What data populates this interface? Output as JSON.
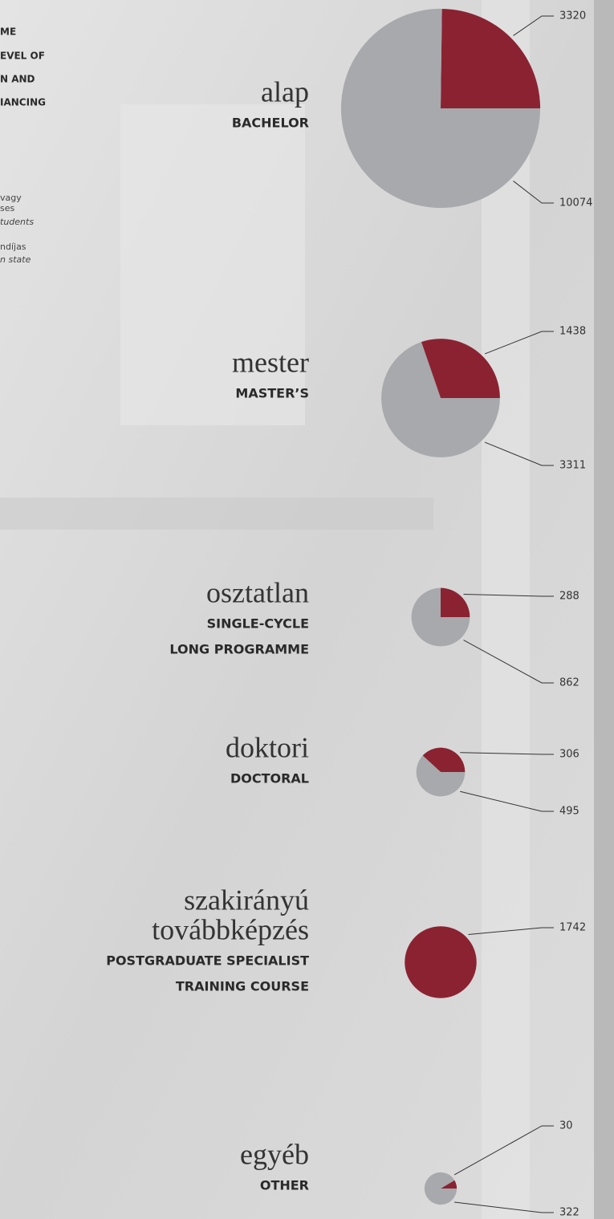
{
  "header_fragments": {
    "heading": [
      "ME",
      "EVEL OF",
      "N AND",
      "IANCING"
    ],
    "note": [
      "vagy",
      "ses",
      "tudents",
      "ndíjas",
      "n state"
    ]
  },
  "chart_data": [
    {
      "type": "pie",
      "title": [
        "alap"
      ],
      "subtitle": [
        "BACHELOR"
      ],
      "values": [
        3320,
        10074
      ],
      "colors": [
        "#8b2232",
        "#a7a9ac"
      ]
    },
    {
      "type": "pie",
      "title": [
        "mester"
      ],
      "subtitle": [
        "MASTER’S"
      ],
      "values": [
        1438,
        3311
      ],
      "colors": [
        "#8b2232",
        "#a7a9ac"
      ]
    },
    {
      "type": "pie",
      "title": [
        "osztatlan"
      ],
      "subtitle": [
        "SINGLE-CYCLE",
        "LONG PROGRAMME"
      ],
      "values": [
        288,
        862
      ],
      "colors": [
        "#8b2232",
        "#a7a9ac"
      ]
    },
    {
      "type": "pie",
      "title": [
        "doktori"
      ],
      "subtitle": [
        "DOCTORAL"
      ],
      "values": [
        306,
        495
      ],
      "colors": [
        "#8b2232",
        "#a7a9ac"
      ]
    },
    {
      "type": "pie",
      "title": [
        "szakirányú",
        "továbbképzés"
      ],
      "subtitle": [
        "POSTGRADUATE SPECIALIST",
        "TRAINING COURSE"
      ],
      "values": [
        1742
      ],
      "colors": [
        "#8b2232"
      ]
    },
    {
      "type": "pie",
      "title": [
        "egyéb"
      ],
      "subtitle": [
        "OTHER"
      ],
      "values": [
        30,
        322
      ],
      "colors": [
        "#8b2232",
        "#a7a9ac"
      ]
    }
  ]
}
